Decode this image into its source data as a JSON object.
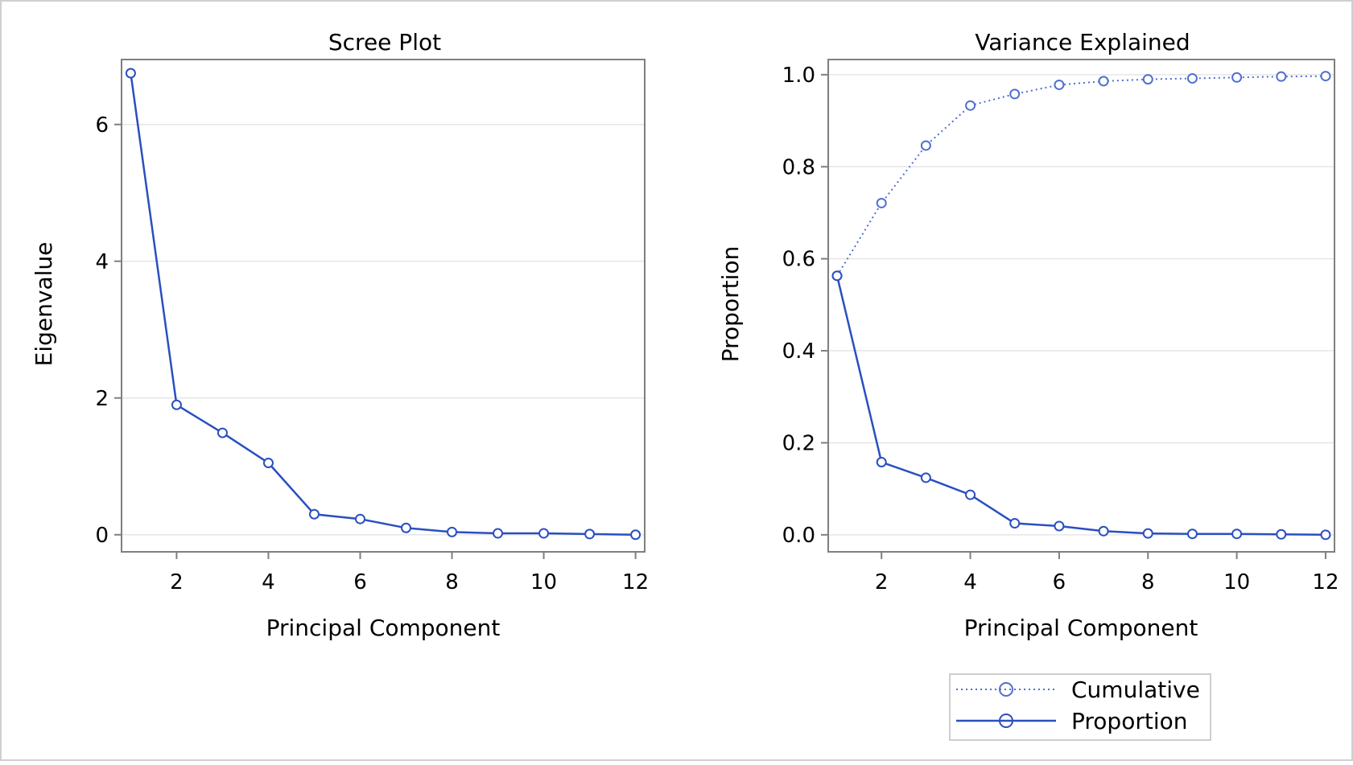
{
  "figure": {
    "border_color": "#cfcfcf",
    "plot_frame_color": "#7f7f7f",
    "grid_color": "#e6e6e6",
    "series_color": "#2a4fc0",
    "cumulative_color": "#4f6fd0"
  },
  "chart_data": [
    {
      "type": "line",
      "title": "Scree Plot",
      "xlabel": "Principal Component",
      "ylabel": "Eigenvalue",
      "xlim": [
        0.8,
        12.2
      ],
      "ylim": [
        -0.25,
        6.95
      ],
      "xticks": [
        2,
        4,
        6,
        8,
        10,
        12
      ],
      "yticks": [
        0,
        2,
        4,
        6
      ],
      "ytick_labels": [
        "0",
        "2",
        "4",
        "6"
      ],
      "grid": "horizontal",
      "x": [
        1,
        2,
        3,
        4,
        5,
        6,
        7,
        8,
        9,
        10,
        11,
        12
      ],
      "series": [
        {
          "values": [
            6.75,
            1.9,
            1.49,
            1.05,
            0.3,
            0.23,
            0.1,
            0.04,
            0.02,
            0.02,
            0.01,
            0.0
          ],
          "style": "solid"
        }
      ]
    },
    {
      "type": "line",
      "title": "Variance Explained",
      "xlabel": "Principal Component",
      "ylabel": "Proportion",
      "xlim": [
        0.8,
        12.2
      ],
      "ylim": [
        -0.037,
        1.033
      ],
      "xticks": [
        2,
        4,
        6,
        8,
        10,
        12
      ],
      "yticks": [
        0.0,
        0.2,
        0.4,
        0.6,
        0.8,
        1.0
      ],
      "ytick_labels": [
        "0.0",
        "0.2",
        "0.4",
        "0.6",
        "0.8",
        "1.0"
      ],
      "grid": "horizontal",
      "legend": "bottom",
      "x": [
        1,
        2,
        3,
        4,
        5,
        6,
        7,
        8,
        9,
        10,
        11,
        12
      ],
      "series": [
        {
          "name": "Cumulative",
          "style": "dotted",
          "values": [
            0.563,
            0.721,
            0.846,
            0.933,
            0.958,
            0.978,
            0.986,
            0.99,
            0.992,
            0.994,
            0.996,
            0.997
          ]
        },
        {
          "name": "Proportion",
          "style": "solid",
          "values": [
            0.563,
            0.158,
            0.124,
            0.087,
            0.025,
            0.019,
            0.008,
            0.003,
            0.002,
            0.002,
            0.001,
            0.0
          ]
        }
      ]
    }
  ]
}
